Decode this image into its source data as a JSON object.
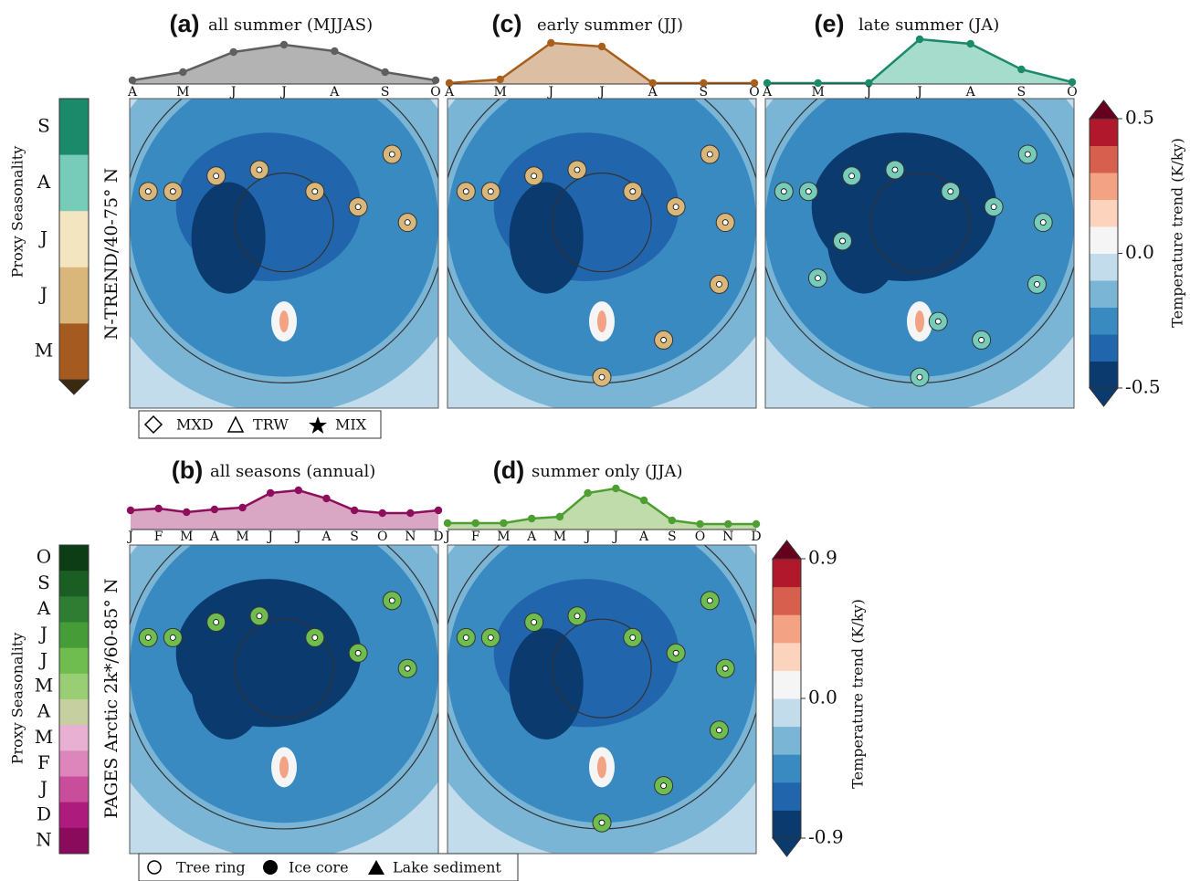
{
  "chart_data": [
    {
      "type": "area-line",
      "panel": "(a)",
      "title": "all summer (MJJAS)",
      "categories": [
        "A",
        "M",
        "J",
        "J",
        "A",
        "S",
        "O"
      ],
      "values": [
        0.08,
        0.26,
        0.7,
        0.86,
        0.72,
        0.26,
        0.08
      ],
      "color": "#5f5f5f",
      "fill": "#b3b3b3",
      "ylim": [
        0,
        1
      ]
    },
    {
      "type": "area-line",
      "panel": "(c)",
      "title": "early summer (JJ)",
      "categories": [
        "A",
        "M",
        "J",
        "J",
        "A",
        "S",
        "O"
      ],
      "values": [
        0.02,
        0.1,
        0.9,
        0.82,
        0.02,
        0.02,
        0.02
      ],
      "color": "#a85f1c",
      "fill": "#dcbfa3",
      "ylim": [
        0,
        1
      ]
    },
    {
      "type": "area-line",
      "panel": "(e)",
      "title": "late summer (JA)",
      "categories": [
        "A",
        "M",
        "J",
        "J",
        "A",
        "S",
        "O"
      ],
      "values": [
        0.02,
        0.02,
        0.02,
        0.98,
        0.88,
        0.32,
        0.04
      ],
      "color": "#1b8a6b",
      "fill": "#a6dccb",
      "ylim": [
        0,
        1
      ]
    },
    {
      "type": "area-line",
      "panel": "(b)",
      "title": "all seasons (annual)",
      "categories": [
        "J",
        "F",
        "M",
        "A",
        "M",
        "J",
        "J",
        "A",
        "S",
        "O",
        "N",
        "D"
      ],
      "values": [
        0.42,
        0.46,
        0.38,
        0.44,
        0.48,
        0.8,
        0.86,
        0.68,
        0.42,
        0.36,
        0.36,
        0.42
      ],
      "color": "#8e0d5c",
      "fill": "#d9a6c4",
      "ylim": [
        0,
        1
      ]
    },
    {
      "type": "area-line",
      "panel": "(d)",
      "title": "summer only (JJA)",
      "categories": [
        "J",
        "F",
        "M",
        "A",
        "M",
        "J",
        "J",
        "A",
        "S",
        "O",
        "N",
        "D"
      ],
      "values": [
        0.14,
        0.14,
        0.14,
        0.24,
        0.28,
        0.8,
        0.9,
        0.64,
        0.2,
        0.12,
        0.12,
        0.12
      ],
      "color": "#4f9e32",
      "fill": "#bfdcaa",
      "ylim": [
        0,
        1
      ]
    },
    {
      "type": "colorbar",
      "label": "Temperature trend (K/ky)",
      "ylim": [
        -0.5,
        0.5
      ],
      "yticks": [
        -0.5,
        {
          "value": 0,
          "label": "0.0"
        },
        0.5
      ],
      "colors": [
        "#0b3a6f",
        "#2166ac",
        "#3a8ac2",
        "#7ab5d6",
        "#c2dcec",
        "#f5f5f5",
        "#fcd3bd",
        "#f3a283",
        "#d6604d",
        "#b2182b"
      ],
      "extend_colors": [
        "#0b3a6f",
        "#67001f"
      ]
    },
    {
      "type": "colorbar",
      "label": "Temperature trend (K/ky)",
      "ylim": [
        -0.9,
        0.9
      ],
      "yticks": [
        -0.9,
        {
          "value": 0,
          "label": "0.0"
        },
        0.9
      ],
      "colors": [
        "#0b3a6f",
        "#2166ac",
        "#3a8ac2",
        "#7ab5d6",
        "#c2dcec",
        "#f5f5f5",
        "#fcd3bd",
        "#f3a283",
        "#d6604d",
        "#b2182b"
      ],
      "extend_colors": [
        "#0b3a6f",
        "#67001f"
      ]
    },
    {
      "type": "category-colorbar",
      "label": "Proxy Seasonality",
      "categories": [
        "S",
        "A",
        "J",
        "J",
        "M"
      ],
      "colors": [
        "#1b8a6b",
        "#76cbb9",
        "#f2e5bf",
        "#d9b77a",
        "#a55b1f"
      ]
    },
    {
      "type": "category-colorbar",
      "label": "Proxy Seasonality",
      "categories": [
        "O",
        "S",
        "A",
        "J",
        "J",
        "M",
        "A",
        "M",
        "F",
        "J",
        "D",
        "N"
      ],
      "colors": [
        "#0d3d14",
        "#1a5e24",
        "#2e7d32",
        "#469c36",
        "#6fbc4f",
        "#99ce75",
        "#c5cfa0",
        "#e8b0d2",
        "#dc86bb",
        "#c84d9b",
        "#ad1c7c",
        "#8a0a5b"
      ]
    }
  ],
  "rows": [
    {
      "label": "N-TREND/40-75° N",
      "legend": [
        "MXD",
        "TRW",
        "MIX"
      ]
    },
    {
      "label": "PAGES Arctic 2k*/60-85° N",
      "legend": [
        "Tree ring",
        "Ice core",
        "Lake sediment"
      ]
    }
  ]
}
